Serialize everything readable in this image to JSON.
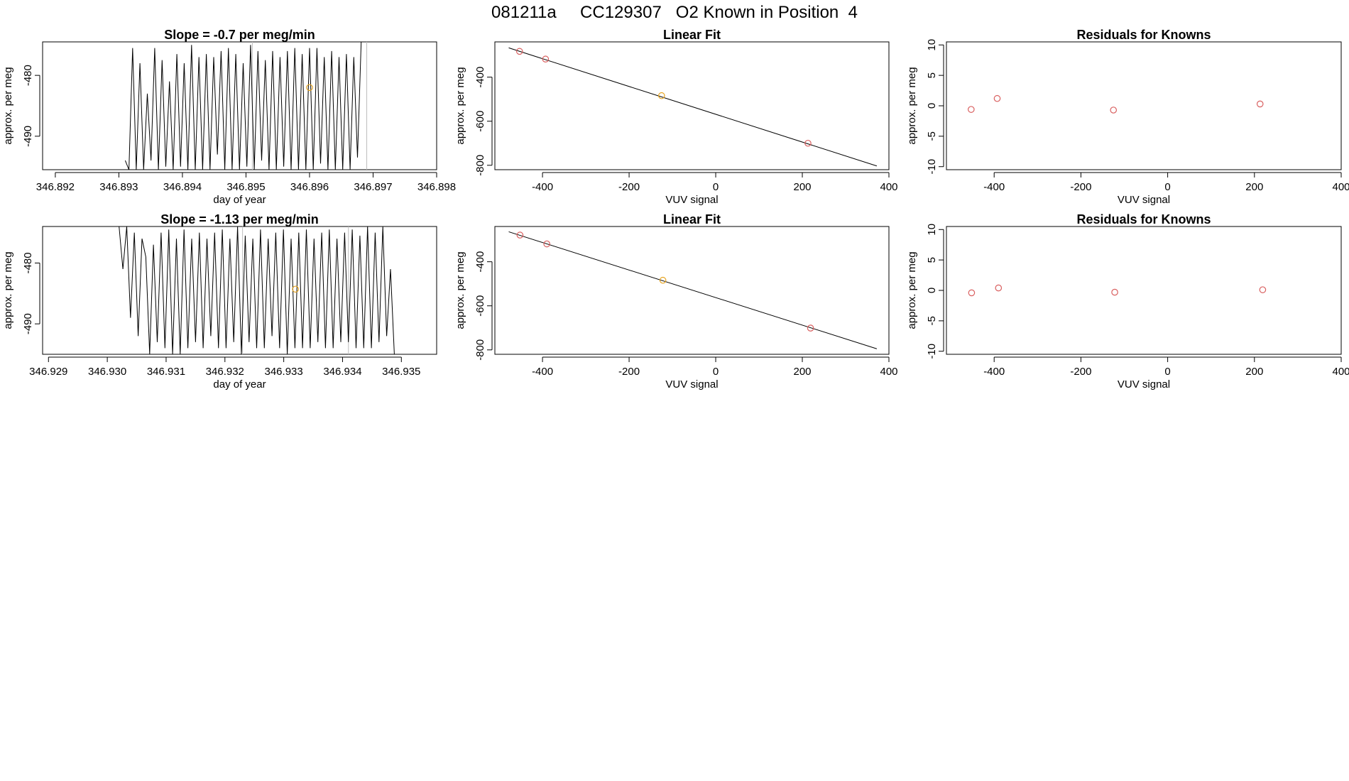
{
  "page": {
    "title": "081211a     CC129307   O2 Known in Position  4"
  },
  "colors": {
    "axis": "#000000",
    "line": "#000000",
    "point_known": "#d95f5f",
    "point_highlight": "#e6a31e",
    "guide": "#bdbdbd"
  },
  "chart_data": [
    {
      "id": "time-series-1",
      "type": "line",
      "title": "Slope =  -0.7  per meg/min",
      "xlabel": "day of year",
      "ylabel": "approx. per meg",
      "xlim": [
        346.8918,
        346.898
      ],
      "ylim": [
        -495.5,
        -474.5
      ],
      "xticks": [
        "346.892",
        "346.893",
        "346.894",
        "346.895",
        "346.896",
        "346.897",
        "346.898"
      ],
      "yticks": [
        "-480",
        "-490"
      ],
      "guides_x": [
        346.8951,
        346.8969
      ],
      "x_start": 346.8931,
      "x_step": 5.8e-05,
      "series": [
        {
          "values": [
            -494,
            -495.5,
            -475.5,
            -495.5,
            -478,
            -495.5,
            -483,
            -494,
            -475.5,
            -495.5,
            -477.5,
            -495,
            -481,
            -495.5,
            -476.5,
            -495,
            -478,
            -495.5,
            -475,
            -495.5,
            -477,
            -495.5,
            -476.5,
            -495.5,
            -477,
            -493,
            -476,
            -495.5,
            -475.5,
            -495.5,
            -476.5,
            -495.5,
            -478,
            -495,
            -475,
            -495.5,
            -476,
            -494,
            -477.5,
            -495.5,
            -476,
            -495.5,
            -477,
            -495,
            -476,
            -495.5,
            -475.5,
            -495.5,
            -476.5,
            -495.5,
            -475.5,
            -495.5,
            -475.5,
            -494.5,
            -477,
            -495.5,
            -476,
            -495.5,
            -477,
            -495.5,
            -476.5,
            -495.5,
            -477,
            -493.5,
            -474.5
          ]
        }
      ],
      "points": [
        {
          "x": 346.896,
          "y": -482,
          "kind": "highlight"
        }
      ]
    },
    {
      "id": "linear-fit-1",
      "type": "scatter",
      "title": "Linear Fit",
      "xlabel": "VUV signal",
      "ylabel": "approx. per meg",
      "xlim": [
        -510,
        400
      ],
      "ylim": [
        -820,
        -240
      ],
      "xticks": [
        "-400",
        "-200",
        "0",
        "200",
        "400"
      ],
      "yticks": [
        "-400",
        "-600",
        "-800"
      ],
      "fit_line": [
        [
          -478,
          -267
        ],
        [
          372,
          -803
        ]
      ],
      "points": [
        {
          "x": -453,
          "y": -283,
          "kind": "known"
        },
        {
          "x": -393,
          "y": -318,
          "kind": "known"
        },
        {
          "x": -125,
          "y": -484,
          "kind": "highlight"
        },
        {
          "x": 213,
          "y": -700,
          "kind": "known"
        }
      ]
    },
    {
      "id": "residuals-1",
      "type": "scatter",
      "title": "Residuals for Knowns",
      "xlabel": "VUV signal",
      "ylabel": "approx. per meg",
      "xlim": [
        -510,
        400
      ],
      "ylim": [
        -10.5,
        10.5
      ],
      "xticks": [
        "-400",
        "-200",
        "0",
        "200",
        "400"
      ],
      "yticks": [
        "10",
        "5",
        "0",
        "-5",
        "-10"
      ],
      "points": [
        {
          "x": -453,
          "y": -0.6,
          "kind": "known"
        },
        {
          "x": -393,
          "y": 1.2,
          "kind": "known"
        },
        {
          "x": -125,
          "y": -0.7,
          "kind": "known"
        },
        {
          "x": 213,
          "y": 0.3,
          "kind": "known"
        }
      ]
    },
    {
      "id": "time-series-2",
      "type": "line",
      "title": "Slope =  -1.13  per meg/min",
      "xlabel": "day of year",
      "ylabel": "approx. per meg",
      "xlim": [
        346.9289,
        346.9356
      ],
      "ylim": [
        -495,
        -474
      ],
      "xticks": [
        "346.929",
        "346.930",
        "346.931",
        "346.932",
        "346.933",
        "346.934",
        "346.935"
      ],
      "yticks": [
        "-480",
        "-490"
      ],
      "guides_x": [
        346.9323,
        346.9341
      ],
      "x_start": 346.9302,
      "x_step": 6.5e-05,
      "series": [
        {
          "values": [
            -474,
            -481,
            -474,
            -489,
            -475,
            -492,
            -476,
            -479,
            -495,
            -477,
            -493,
            -475,
            -494,
            -474.5,
            -495,
            -476,
            -495,
            -474.5,
            -494,
            -476,
            -493,
            -475,
            -494,
            -476,
            -492,
            -475,
            -494,
            -474.5,
            -494,
            -476,
            -493,
            -474,
            -495,
            -475.5,
            -493,
            -476,
            -494,
            -474.5,
            -494,
            -476,
            -492,
            -475,
            -494,
            -474.5,
            -495,
            -476,
            -494,
            -475,
            -494,
            -474.5,
            -494,
            -476,
            -493,
            -475,
            -494,
            -474.5,
            -494,
            -476,
            -493,
            -475,
            -493,
            -474.5,
            -494,
            -475.5,
            -494,
            -474,
            -494,
            -475,
            -493,
            -474,
            -492,
            -481,
            -495
          ]
        }
      ],
      "points": [
        {
          "x": 346.9332,
          "y": -484.3,
          "kind": "highlight"
        }
      ]
    },
    {
      "id": "linear-fit-2",
      "type": "scatter",
      "title": "Linear Fit",
      "xlabel": "VUV signal",
      "ylabel": "approx. per meg",
      "xlim": [
        -510,
        400
      ],
      "ylim": [
        -820,
        -240
      ],
      "xticks": [
        "-400",
        "-200",
        "0",
        "200",
        "400"
      ],
      "yticks": [
        "-400",
        "-600",
        "-800"
      ],
      "fit_line": [
        [
          -478,
          -264
        ],
        [
          372,
          -795
        ]
      ],
      "points": [
        {
          "x": -452,
          "y": -279,
          "kind": "known"
        },
        {
          "x": -390,
          "y": -319,
          "kind": "known"
        },
        {
          "x": -122,
          "y": -484,
          "kind": "highlight"
        },
        {
          "x": 219,
          "y": -701,
          "kind": "known"
        }
      ]
    },
    {
      "id": "residuals-2",
      "type": "scatter",
      "title": "Residuals for Knowns",
      "xlabel": "VUV signal",
      "ylabel": "approx. per meg",
      "xlim": [
        -510,
        400
      ],
      "ylim": [
        -10.5,
        10.5
      ],
      "xticks": [
        "-400",
        "-200",
        "0",
        "200",
        "400"
      ],
      "yticks": [
        "10",
        "5",
        "0",
        "-5",
        "-10"
      ],
      "points": [
        {
          "x": -452,
          "y": -0.4,
          "kind": "known"
        },
        {
          "x": -390,
          "y": 0.4,
          "kind": "known"
        },
        {
          "x": -122,
          "y": -0.3,
          "kind": "known"
        },
        {
          "x": 219,
          "y": 0.1,
          "kind": "known"
        }
      ]
    }
  ]
}
